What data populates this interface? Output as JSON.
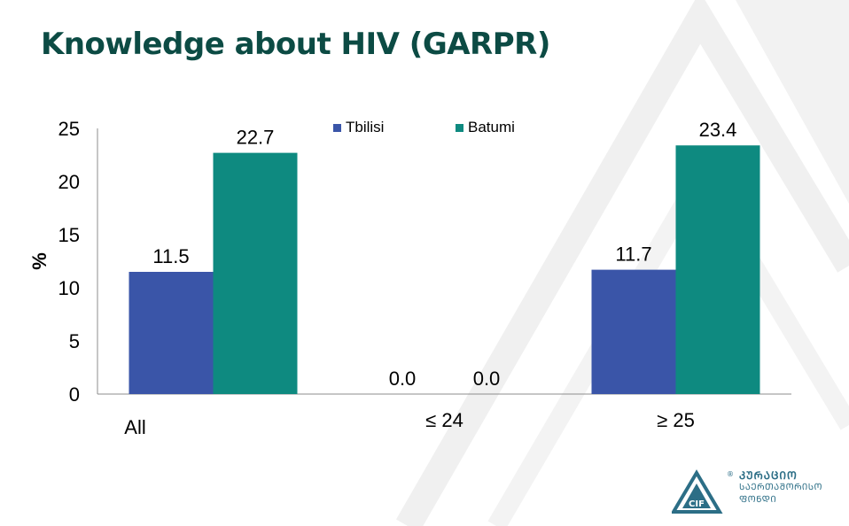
{
  "slide": {
    "title": "Knowledge about HIV (GARPR)"
  },
  "chart_data": {
    "type": "bar",
    "title": "Knowledge about HIV (GARPR)",
    "xlabel": "",
    "ylabel": "%",
    "ylim": [
      0,
      25
    ],
    "yticks": [
      0,
      5,
      10,
      15,
      20,
      25
    ],
    "grid": false,
    "legend_position": "top",
    "categories": [
      "All",
      "≤ 24",
      "≥ 25"
    ],
    "series": [
      {
        "name": "Tbilisi",
        "color": "#3a55a8",
        "values": [
          11.5,
          0.0,
          11.7
        ],
        "labels": [
          "11.5",
          "0.0",
          "11.7"
        ]
      },
      {
        "name": "Batumi",
        "color": "#0e8a80",
        "values": [
          22.7,
          0.0,
          23.4
        ],
        "labels": [
          "22.7",
          "0.0",
          "23.4"
        ]
      }
    ]
  },
  "logo": {
    "line1": "ᲙᲣᲠᲐᲪᲘᲝ",
    "line2": "ᲡᲐᲔᲠᲗᲐᲨᲝᲠᲘᲡᲝ",
    "line3": "ᲤᲝᲜᲓᲘ",
    "mark_text": "CIF",
    "registered": "®"
  }
}
